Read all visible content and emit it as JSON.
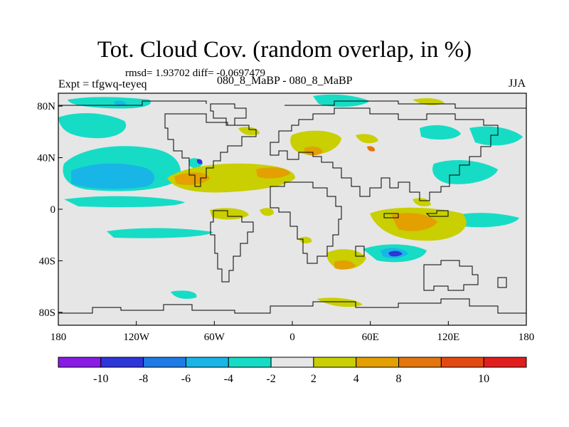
{
  "title": "Tot. Cloud Cov. (random overlap, in %)",
  "stats": "rmsd= 1.93702 diff= -0.0697479",
  "expt": "Expt = tfgwq-teyeq",
  "case_id": "080_8_MaBP - 080_8_MaBP",
  "season": "JJA",
  "map": {
    "lon_ticks": [
      "180",
      "120W",
      "60W",
      "0",
      "60E",
      "120E",
      "180"
    ],
    "lat_ticks": [
      "80N",
      "40N",
      "0",
      "40S",
      "80S"
    ],
    "lon_range": [
      -180,
      180
    ],
    "lat_range": [
      -90,
      90
    ],
    "background_color": "#e6e6e6"
  },
  "colorbar": {
    "colors": [
      "#8a1ae6",
      "#2e35d9",
      "#1f7be6",
      "#18b6e6",
      "#16dcc6",
      "#e6e6e6",
      "#c9cf00",
      "#e3a000",
      "#e3760f",
      "#e34a12",
      "#e01e1e"
    ],
    "labels": [
      "-10",
      "-8",
      "-6",
      "-4",
      "-2",
      "2",
      "4",
      "8",
      "10"
    ]
  }
}
